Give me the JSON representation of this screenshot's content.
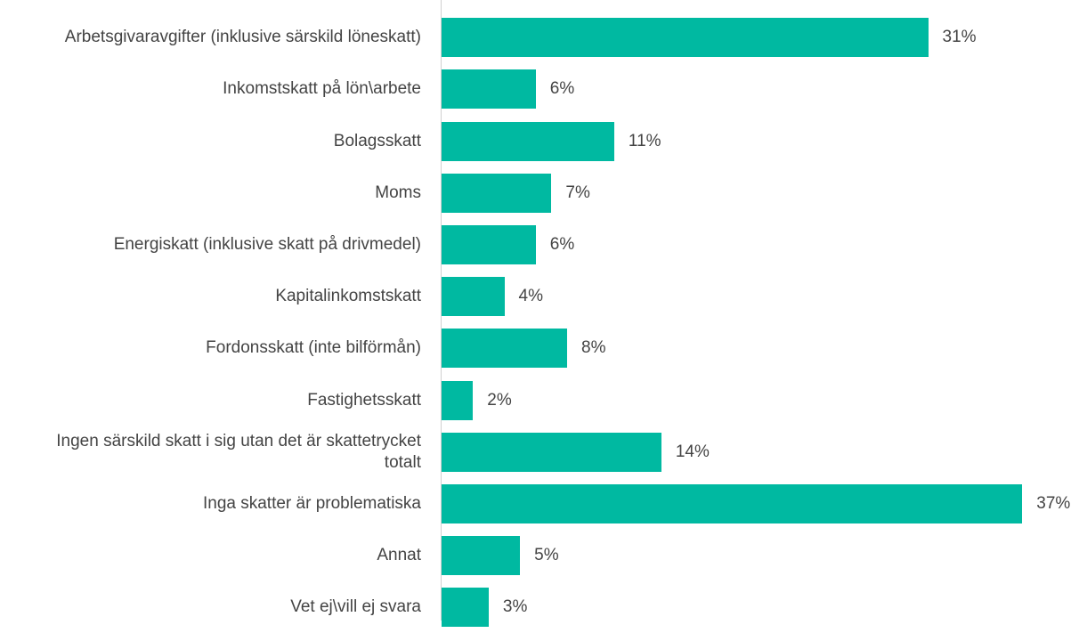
{
  "chart_data": {
    "type": "bar",
    "orientation": "horizontal",
    "categories": [
      "Arbetsgivaravgifter (inklusive särskild löneskatt)",
      "Inkomstskatt på lön\\arbete",
      "Bolagsskatt",
      "Moms",
      "Energiskatt (inklusive skatt på drivmedel)",
      "Kapitalinkomstskatt",
      "Fordonsskatt (inte bilförmån)",
      "Fastighetsskatt",
      "Ingen särskild skatt i sig utan det är skattetrycket totalt",
      "Inga skatter är problematiska",
      "Annat",
      "Vet ej\\vill ej svara"
    ],
    "values": [
      31,
      6,
      11,
      7,
      6,
      4,
      8,
      2,
      14,
      37,
      5,
      3
    ],
    "value_labels": [
      "31%",
      "6%",
      "11%",
      "7%",
      "6%",
      "4%",
      "8%",
      "2%",
      "14%",
      "37%",
      "5%",
      "3%"
    ],
    "color": "#00b9a1"
  }
}
